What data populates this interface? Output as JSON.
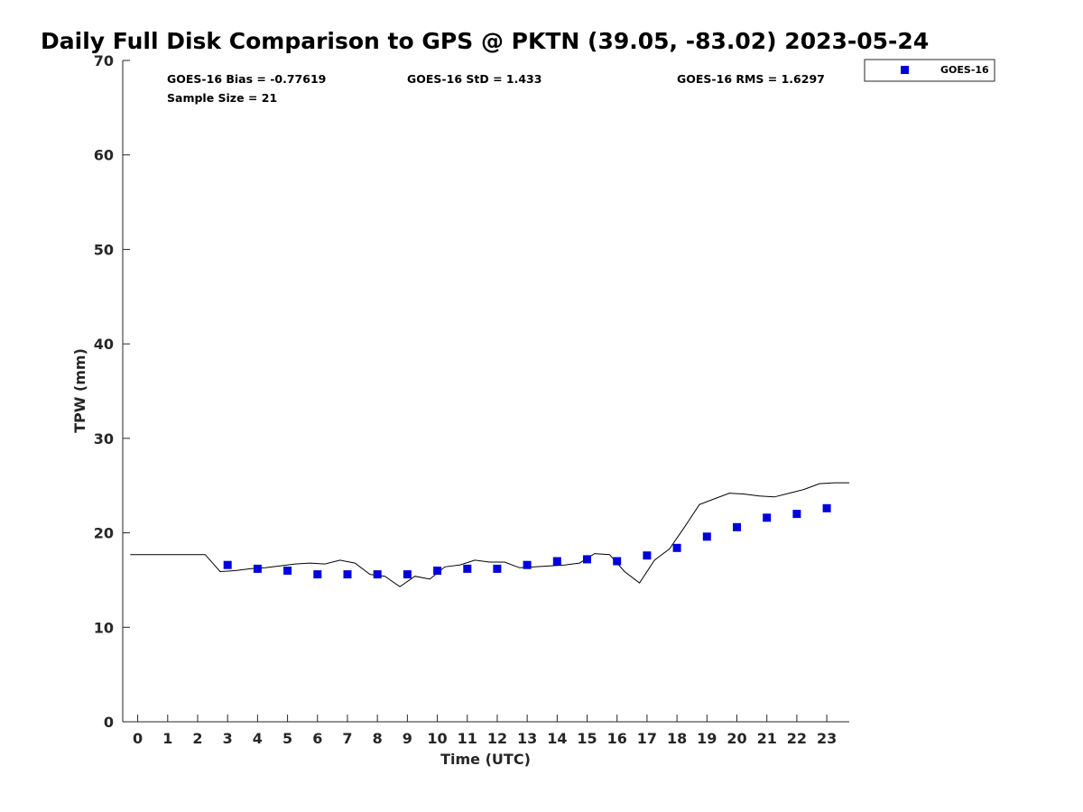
{
  "chart_data": {
    "type": "scatter",
    "title": "Daily Full Disk Comparison to GPS @ PKTN (39.05, -83.02) 2023-05-24",
    "xlabel": "Time (UTC)",
    "ylabel": "TPW (mm)",
    "xlim": [
      -0.5,
      23.75
    ],
    "ylim": [
      0,
      70
    ],
    "x_ticks": [
      0,
      1,
      2,
      3,
      4,
      5,
      6,
      7,
      8,
      9,
      10,
      11,
      12,
      13,
      14,
      15,
      16,
      17,
      18,
      19,
      20,
      21,
      22,
      23
    ],
    "y_ticks": [
      0,
      10,
      20,
      30,
      40,
      50,
      60,
      70
    ],
    "grid": false,
    "legend_position": "top-right",
    "stats": {
      "bias": "GOES-16 Bias = -0.77619",
      "std": "GOES-16 StD = 1.433",
      "rms": "GOES-16 RMS = 1.6297",
      "sample_size": "Sample Size = 21"
    },
    "series": [
      {
        "name": "GOES-16",
        "kind": "scatter",
        "marker": "square",
        "color": "#0000dd",
        "x": [
          3,
          4,
          5,
          6,
          7,
          8,
          9,
          10,
          11,
          12,
          13,
          14,
          15,
          16,
          17,
          18,
          19,
          20,
          21,
          22,
          23
        ],
        "y": [
          16.6,
          16.2,
          16.0,
          15.6,
          15.6,
          15.6,
          15.6,
          16.0,
          16.2,
          16.2,
          16.6,
          17.0,
          17.2,
          17.0,
          17.6,
          18.4,
          19.6,
          20.6,
          21.6,
          22.0,
          22.6
        ]
      },
      {
        "kind": "line",
        "color": "#000000",
        "x": [
          -0.25,
          0.25,
          0.75,
          1.25,
          1.75,
          2.25,
          2.75,
          3.25,
          3.75,
          4.25,
          4.75,
          5.25,
          5.75,
          6.25,
          6.75,
          7.25,
          7.75,
          8.25,
          8.75,
          9.25,
          9.75,
          10.25,
          10.75,
          11.25,
          11.75,
          12.25,
          12.75,
          13.25,
          13.75,
          14.25,
          14.75,
          15.25,
          15.75,
          16.25,
          16.75,
          17.25,
          17.75,
          18.25,
          18.75,
          19.25,
          19.75,
          20.25,
          20.75,
          21.25,
          21.75,
          22.25,
          22.75,
          23.25,
          23.75
        ],
        "y": [
          17.7,
          17.7,
          17.7,
          17.7,
          17.7,
          17.7,
          15.9,
          16.0,
          16.2,
          16.3,
          16.5,
          16.7,
          16.8,
          16.7,
          17.1,
          16.8,
          15.6,
          15.4,
          14.3,
          15.4,
          15.1,
          16.4,
          16.6,
          17.1,
          16.9,
          16.9,
          16.3,
          16.4,
          16.5,
          16.6,
          16.8,
          17.8,
          17.7,
          15.9,
          14.7,
          17.1,
          18.3,
          20.6,
          23.0,
          23.6,
          24.2,
          24.1,
          23.9,
          23.8,
          24.2,
          24.6,
          25.2,
          25.3,
          25.3
        ]
      }
    ]
  }
}
